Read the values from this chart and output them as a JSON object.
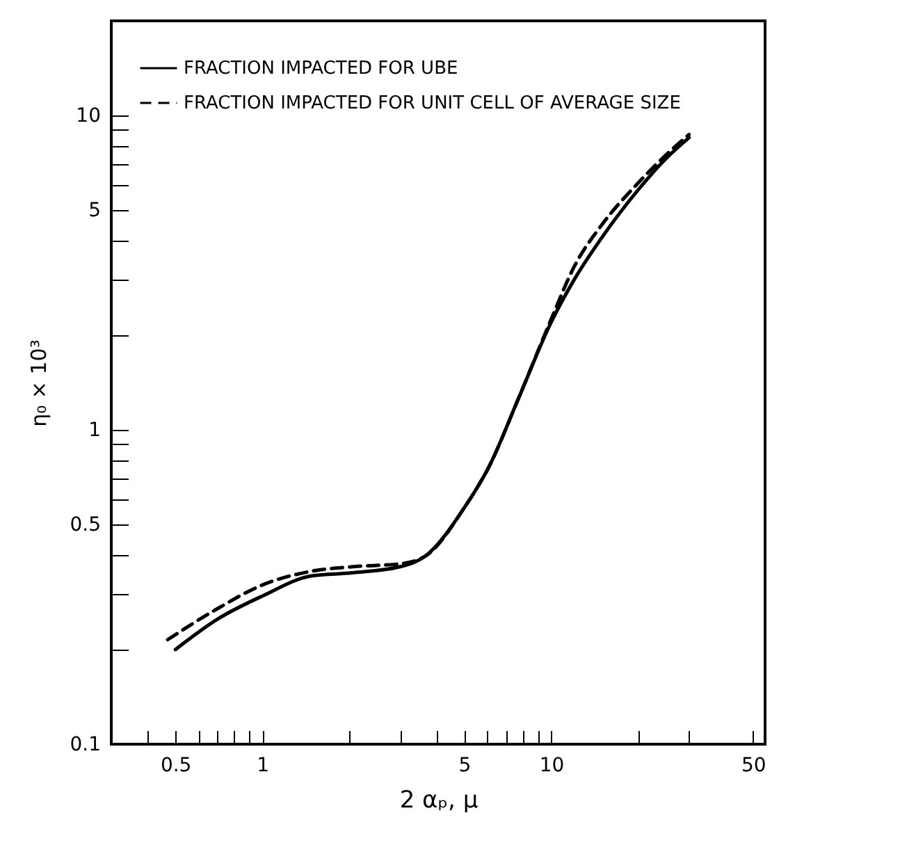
{
  "chart_data": {
    "type": "line",
    "xlabel": "2 αₚ, μ",
    "ylabel": "η₀ × 10³",
    "log": "xy",
    "grid": false,
    "legend": "top left",
    "marker": "none",
    "xlim": [
      0.3,
      55
    ],
    "ylim": [
      0.1,
      20
    ],
    "xticks": [
      {
        "value": 0.4,
        "label": null
      },
      0.5,
      {
        "value": 0.6,
        "label": null
      },
      {
        "value": 0.7,
        "label": null
      },
      {
        "value": 0.8,
        "label": null
      },
      {
        "value": 0.9,
        "label": null
      },
      1,
      {
        "value": 2,
        "label": null
      },
      {
        "value": 3,
        "label": null
      },
      {
        "value": 4,
        "label": null
      },
      5,
      {
        "value": 6,
        "label": null
      },
      {
        "value": 7,
        "label": null
      },
      {
        "value": 8,
        "label": null
      },
      {
        "value": 9,
        "label": null
      },
      10,
      {
        "value": 20,
        "label": null
      },
      {
        "value": 30,
        "label": null
      },
      50
    ],
    "yticks": [
      0.1,
      {
        "value": 0.2,
        "label": null
      },
      {
        "value": 0.3,
        "label": null
      },
      {
        "value": 0.4,
        "label": null
      },
      0.5,
      {
        "value": 0.6,
        "label": null
      },
      {
        "value": 0.7,
        "label": null
      },
      {
        "value": 0.8,
        "label": null
      },
      {
        "value": 0.9,
        "label": null
      },
      1,
      {
        "value": 2,
        "label": null
      },
      {
        "value": 3,
        "label": null
      },
      {
        "value": 4,
        "label": null
      },
      5,
      {
        "value": 6,
        "label": null
      },
      {
        "value": 7,
        "label": null
      },
      {
        "value": 8,
        "label": null
      },
      {
        "value": 9,
        "label": null
      },
      10
    ],
    "series": [
      {
        "name": "FRACTION IMPACTED FOR UBE",
        "color": "#000000",
        "line_style": "solid",
        "x": [
          0.5,
          0.7,
          1,
          1.48,
          2.05,
          3.0,
          3.66,
          5.0,
          6.12,
          7.68,
          10,
          12,
          15,
          20,
          25,
          30
        ],
        "values": [
          0.2,
          0.25,
          0.296,
          0.343,
          0.351,
          0.367,
          0.396,
          0.565,
          0.77,
          1.25,
          2.2,
          3.0,
          4.1,
          5.8,
          7.3,
          8.5
        ]
      },
      {
        "name": "FRACTION IMPACTED FOR UNIT CELL OF AVERAGE SIZE",
        "color": "#000000",
        "line_style": "dashed",
        "x": [
          0.47,
          0.7,
          1,
          1.48,
          2.05,
          3.0,
          3.66,
          5.0,
          6.12,
          7.68,
          10,
          12,
          15,
          20,
          25,
          30
        ],
        "values": [
          0.215,
          0.27,
          0.321,
          0.355,
          0.367,
          0.375,
          0.396,
          0.565,
          0.77,
          1.25,
          2.25,
          3.3,
          4.5,
          6.1,
          7.5,
          8.7
        ]
      }
    ]
  }
}
